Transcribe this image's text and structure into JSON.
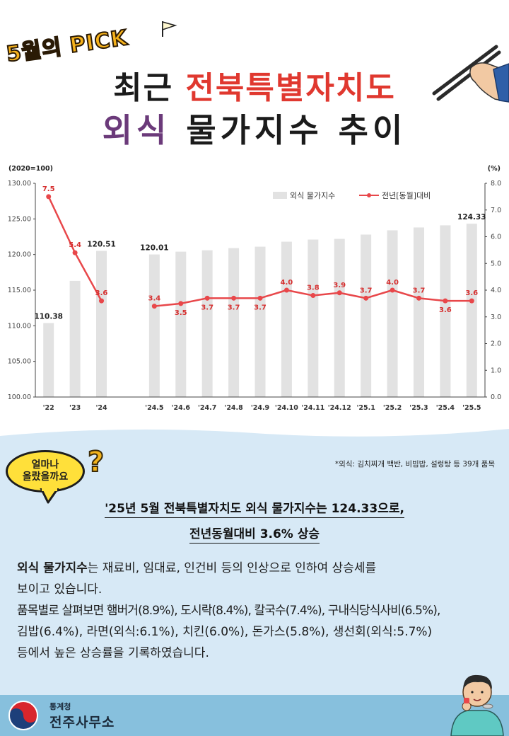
{
  "header": {
    "badge": "5월의 PICK",
    "title_line1_plain": "최근 ",
    "title_line1_highlight": "전북특별자치도",
    "title_line2_highlight": "외식",
    "title_line2_plain": " 물가지수 추이"
  },
  "chart_data": {
    "type": "bar",
    "left_unit": "(2020=100)",
    "right_unit": "(%)",
    "categories": [
      "'22",
      "'23",
      "'24",
      "",
      "'24.5",
      "'24.6",
      "'24.7",
      "'24.8",
      "'24.9",
      "'24.10",
      "'24.11",
      "'24.12",
      "'25.1",
      "'25.2",
      "'25.3",
      "'25.4",
      "'25.5"
    ],
    "series": [
      {
        "name": "외식 물가지수",
        "type": "bar",
        "axis": "left",
        "values": [
          110.38,
          116.3,
          120.51,
          null,
          120.01,
          120.4,
          120.6,
          120.9,
          121.1,
          121.8,
          122.1,
          122.2,
          122.8,
          123.4,
          123.8,
          124.1,
          124.33
        ],
        "labels": [
          "110.38",
          "",
          "120.51",
          "",
          "120.01",
          "",
          "",
          "",
          "",
          "",
          "",
          "",
          "",
          "",
          "",
          "",
          "124.33"
        ]
      },
      {
        "name": "전년[동월]대비",
        "type": "line",
        "axis": "right",
        "segments": [
          [
            0,
            2
          ],
          [
            4,
            16
          ]
        ],
        "values": [
          7.5,
          5.4,
          3.6,
          null,
          3.4,
          3.5,
          3.7,
          3.7,
          3.7,
          4.0,
          3.8,
          3.9,
          3.7,
          4.0,
          3.7,
          3.6,
          3.6
        ],
        "labels": [
          "7.5",
          "5.4",
          "3.6",
          "",
          "3.4",
          "3.5",
          "3.7",
          "3.7",
          "3.7",
          "4.0",
          "3.8",
          "3.9",
          "3.7",
          "4.0",
          "3.7",
          "3.6",
          "3.6"
        ],
        "label_pos": [
          "above",
          "above",
          "above",
          "",
          "above",
          "below",
          "below",
          "below",
          "below",
          "above",
          "above",
          "above",
          "above",
          "above",
          "above",
          "below",
          "above"
        ]
      }
    ],
    "y_left": {
      "range": [
        100,
        130
      ],
      "ticks": [
        "100.00",
        "105.00",
        "110.00",
        "115.00",
        "120.00",
        "125.00",
        "130.00"
      ]
    },
    "y_right": {
      "range": [
        0,
        8
      ],
      "ticks": [
        "0.0",
        "1.0",
        "2.0",
        "3.0",
        "4.0",
        "5.0",
        "6.0",
        "7.0",
        "8.0"
      ]
    },
    "grid": false,
    "legend_placement": "top-right",
    "colors": {
      "bar": "#e2e2e2",
      "line": "#e8474a",
      "label": "#d62f2f"
    }
  },
  "info": {
    "bubble": "얼마나\n올랐을까요",
    "question_mark": "?",
    "note": "*외식: 김치찌개 백반, 비빔밥, 설렁탕 등 39개 품목",
    "headline1": "'25년 5월 전북특별자치도 외식 물가지수는 124.33으로,",
    "headline2": "전년동월대비 3.6% 상승",
    "body_bold": "외식 물가지수",
    "body_line1": "는 재료비, 임대료, 인건비 등의 인상으로 인하여 상승세를",
    "body_line2": "보이고 있습니다.",
    "body_line3": "품목별로 살펴보면 햄버거(8.9%), 도시락(8.4%), 칼국수(7.4%), 구내식당식사비(6.5%),",
    "body_line4": "김밥(6.4%), 라면(외식:6.1%), 치킨(6.0%), 돈가스(5.8%), 생선회(외식:5.7%)",
    "body_line5": "등에서 높은 상승률을 기록하였습니다."
  },
  "footer": {
    "org_small": "통계청",
    "org_large": "전주사무소"
  }
}
